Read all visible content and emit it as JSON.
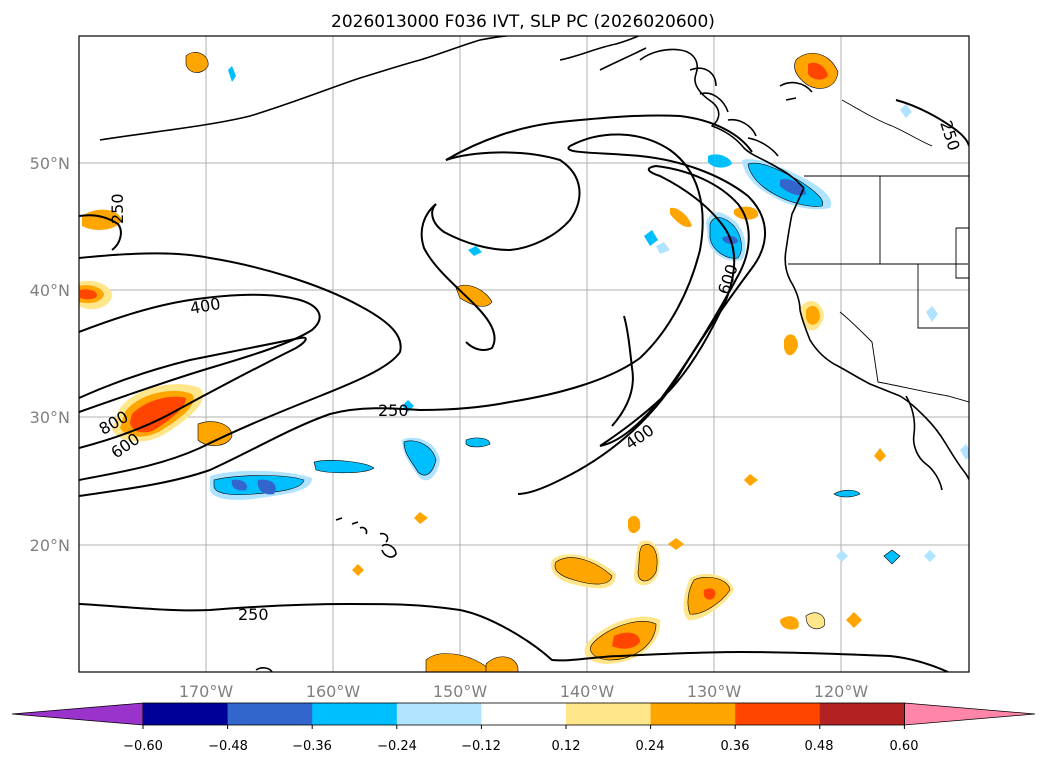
{
  "title": "2026013000 F036 IVT, SLP PC (2026020600)",
  "lat_labels": [
    "50°N",
    "40°N",
    "30°N",
    "20°N"
  ],
  "lon_labels": [
    "170°W",
    "160°W",
    "150°W",
    "140°W",
    "130°W",
    "120°W"
  ],
  "colorbar": {
    "ticks": [
      "−0.60",
      "−0.48",
      "−0.36",
      "−0.24",
      "−0.12",
      "0.12",
      "0.24",
      "0.36",
      "0.48",
      "0.60"
    ],
    "colors": [
      "#9933cc",
      "#000099",
      "#3366cc",
      "#00bfff",
      "#b0e3ff",
      "#ffffff",
      "#ffe68a",
      "#ffa500",
      "#ff4500",
      "#b22222",
      "#ff85a9"
    ]
  },
  "contour_labels": [
    "250",
    "400",
    "250",
    "800",
    "600",
    "250",
    "600",
    "400",
    "250"
  ],
  "map": {
    "lon_range": [
      -180,
      -110
    ],
    "lat_range": [
      10,
      60
    ],
    "gridlines": true
  }
}
